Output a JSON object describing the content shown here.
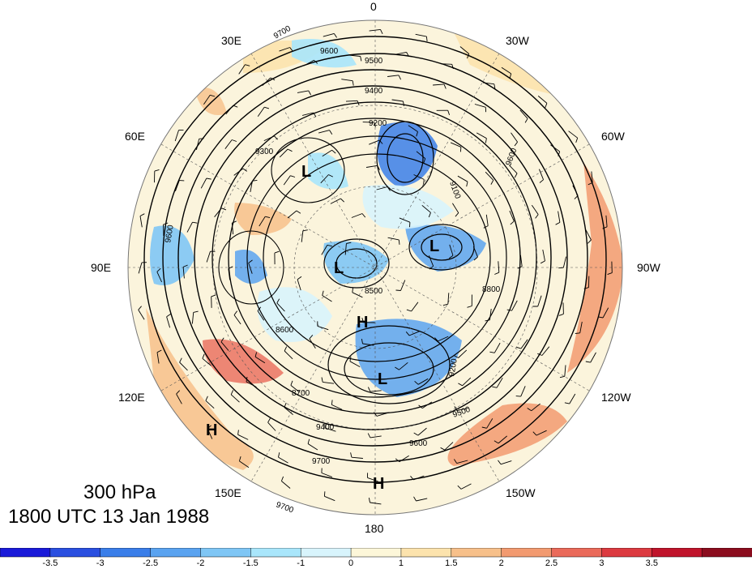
{
  "map": {
    "longitude_labels": [
      "0",
      "30W",
      "60W",
      "90W",
      "120W",
      "150W",
      "180",
      "150E",
      "120E",
      "90E",
      "60E",
      "30E"
    ],
    "pressure_systems": [
      "L",
      "L",
      "L",
      "L",
      "H",
      "H",
      "H"
    ],
    "contour_labels": [
      "9700",
      "9600",
      "9500",
      "9400",
      "9300",
      "9200",
      "9100",
      "8500",
      "8600",
      "8700",
      "8800"
    ],
    "colors": {
      "land": "#f5ead0",
      "ocean_edge": "#ffffff",
      "contour": "#000000"
    }
  },
  "caption": {
    "level": "300 hPa",
    "time": "1800 UTC 13 Jan 1988"
  },
  "colorbar": {
    "ticks": [
      "-3.5",
      "-3",
      "-2.5",
      "-2",
      "-1.5",
      "-1",
      "0",
      "1",
      "1.5",
      "2",
      "2.5",
      "3",
      "3.5"
    ],
    "colors": [
      "#1a1ad9",
      "#2a4fe0",
      "#3a7ee9",
      "#5aa3f0",
      "#7fc6f5",
      "#a9e6fb",
      "#d8f4fc",
      "#fdf7d9",
      "#fce3ad",
      "#f7c08a",
      "#f29a70",
      "#ea6a5a",
      "#dc3a40",
      "#c0142b",
      "#8b0d1e"
    ]
  }
}
